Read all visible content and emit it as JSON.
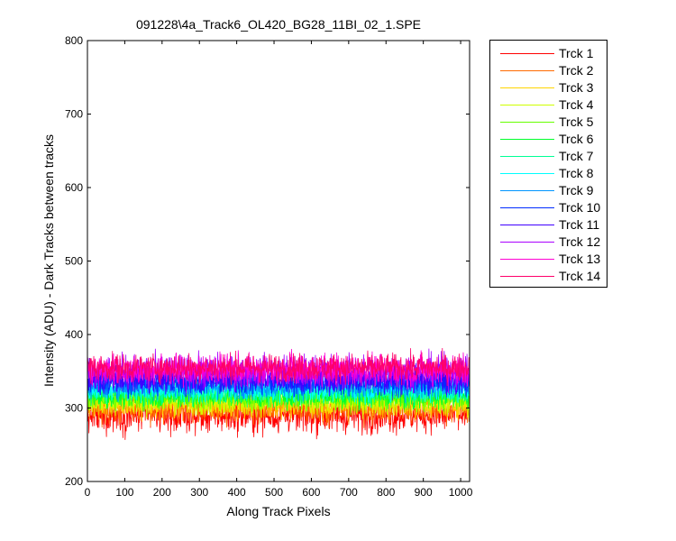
{
  "chart_data": {
    "type": "line",
    "title": "091228\\4a_Track6_OL420_BG28_11BI_02_1.SPE",
    "xlabel": "Along Track Pixels",
    "ylabel": "Intensity (ADU) - Dark Tracks between tracks",
    "xlim": [
      0,
      1024
    ],
    "ylim": [
      200,
      800
    ],
    "x_ticks": [
      0,
      100,
      200,
      300,
      400,
      500,
      600,
      700,
      800,
      900,
      1000
    ],
    "y_ticks": [
      200,
      300,
      400,
      500,
      600,
      700,
      800
    ],
    "grid": false,
    "legend_position": "outside-right",
    "points_per_series": 1024,
    "series": [
      {
        "name": "Trck 1",
        "color": "#ff0000",
        "mean": 290,
        "noise_range": [
          255,
          330
        ]
      },
      {
        "name": "Trck 2",
        "color": "#ff6a00",
        "mean": 300,
        "noise_range": [
          270,
          335
        ]
      },
      {
        "name": "Trck 3",
        "color": "#ffd500",
        "mean": 306,
        "noise_range": [
          280,
          340
        ]
      },
      {
        "name": "Trck 4",
        "color": "#cfff00",
        "mean": 310,
        "noise_range": [
          285,
          345
        ]
      },
      {
        "name": "Trck 5",
        "color": "#66ff00",
        "mean": 314,
        "noise_range": [
          290,
          345
        ]
      },
      {
        "name": "Trck 6",
        "color": "#00ff2b",
        "mean": 318,
        "noise_range": [
          295,
          350
        ]
      },
      {
        "name": "Trck 7",
        "color": "#00ff95",
        "mean": 322,
        "noise_range": [
          300,
          352
        ]
      },
      {
        "name": "Trck 8",
        "color": "#00ffff",
        "mean": 326,
        "noise_range": [
          302,
          355
        ]
      },
      {
        "name": "Trck 9",
        "color": "#0095ff",
        "mean": 330,
        "noise_range": [
          305,
          360
        ]
      },
      {
        "name": "Trck 10",
        "color": "#002bff",
        "mean": 336,
        "noise_range": [
          310,
          370
        ]
      },
      {
        "name": "Trck 11",
        "color": "#4000ff",
        "mean": 340,
        "noise_range": [
          315,
          375
        ]
      },
      {
        "name": "Trck 12",
        "color": "#aa00ff",
        "mean": 350,
        "noise_range": [
          320,
          392
        ]
      },
      {
        "name": "Trck 13",
        "color": "#ff00d4",
        "mean": 352,
        "noise_range": [
          325,
          392
        ]
      },
      {
        "name": "Trck 14",
        "color": "#ff006a",
        "mean": 355,
        "noise_range": [
          330,
          390
        ]
      }
    ]
  }
}
